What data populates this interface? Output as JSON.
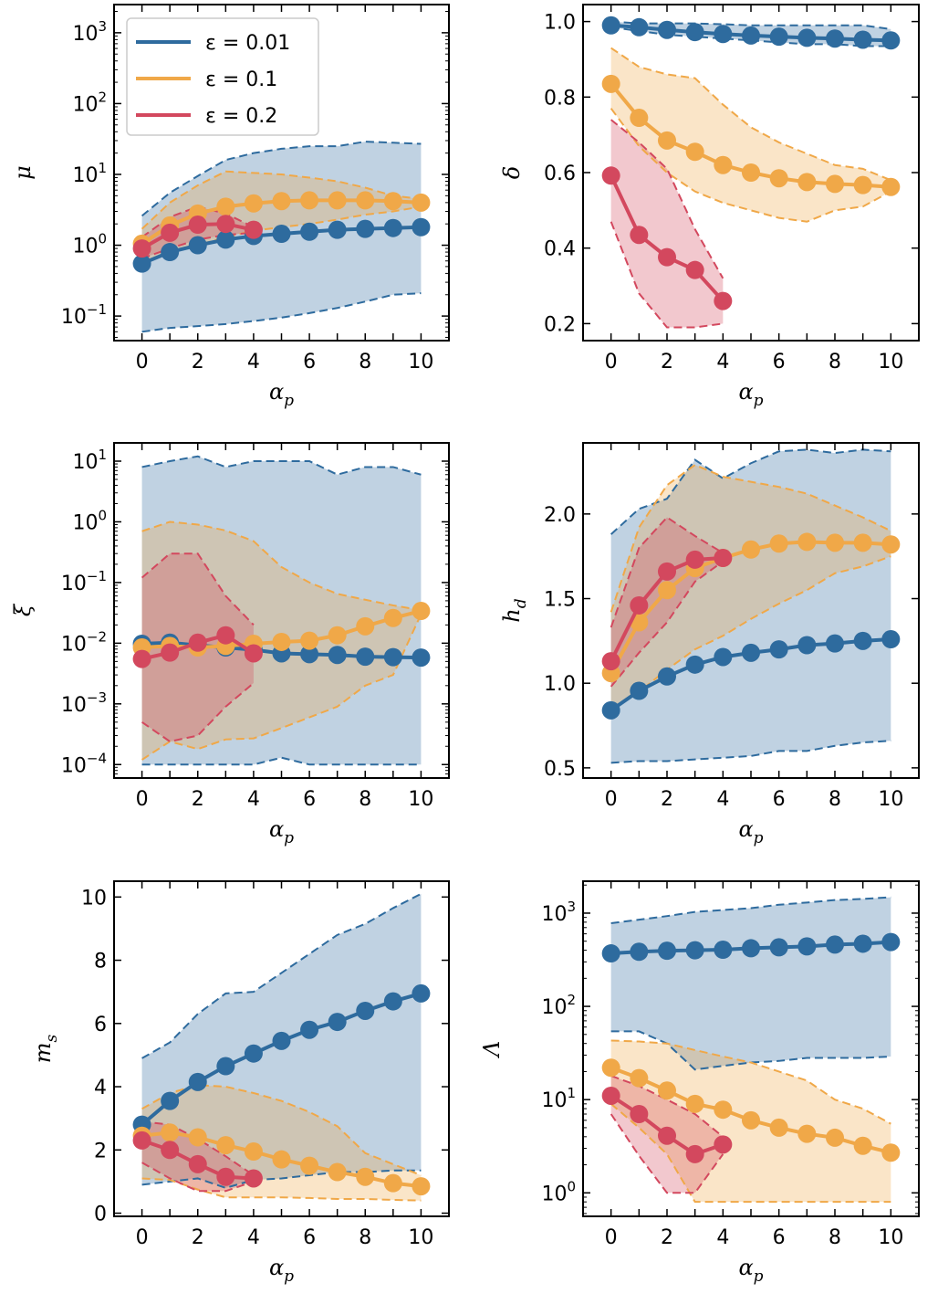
{
  "colors": {
    "eps_0_01": "#2e6b9e",
    "eps_0_1": "#f0a848",
    "eps_0_2": "#d3485e"
  },
  "legend": {
    "placement": "upper-left of first panel",
    "entries": [
      "ε = 0.01",
      "ε = 0.1",
      "ε = 0.2"
    ]
  },
  "chart_data": [
    {
      "id": "mu",
      "type": "line",
      "ylabel": "μ",
      "xlabel": "α_p",
      "yscale": "log",
      "ylim": [
        0.045,
        2500
      ],
      "xlim": [
        -1,
        11
      ],
      "xticks": [
        0,
        2,
        4,
        6,
        8,
        10
      ],
      "yticks": [
        0.1,
        1,
        10,
        100,
        1000
      ],
      "ytick_labels": [
        "10^-1",
        "10^0",
        "10^1",
        "10^2",
        "10^3"
      ],
      "series": [
        {
          "name": "ε = 0.01",
          "x": [
            0,
            1,
            2,
            3,
            4,
            5,
            6,
            7,
            8,
            9,
            10
          ],
          "values": [
            0.55,
            0.8,
            1.0,
            1.2,
            1.35,
            1.45,
            1.55,
            1.65,
            1.7,
            1.75,
            1.8
          ],
          "band_upper": [
            2.6,
            5.5,
            9.5,
            16,
            20,
            23,
            25,
            25,
            29,
            28,
            27
          ],
          "band_lower": [
            0.06,
            0.068,
            0.072,
            0.077,
            0.085,
            0.095,
            0.11,
            0.13,
            0.16,
            0.2,
            0.21
          ]
        },
        {
          "name": "ε = 0.1",
          "x": [
            0,
            1,
            2,
            3,
            4,
            5,
            6,
            7,
            8,
            9,
            10
          ],
          "values": [
            1.05,
            1.9,
            2.8,
            3.5,
            3.9,
            4.2,
            4.3,
            4.3,
            4.3,
            4.2,
            4.0
          ],
          "band_upper": [
            1.7,
            4.0,
            7.0,
            11,
            10.5,
            10,
            9,
            8,
            6.5,
            5,
            4.5
          ],
          "band_lower": [
            0.55,
            0.8,
            1.0,
            1.3,
            1.6,
            1.8,
            2.0,
            2.3,
            2.7,
            3.0,
            3.5
          ]
        },
        {
          "name": "ε = 0.2",
          "x": [
            0,
            1,
            2,
            3,
            4
          ],
          "values": [
            0.9,
            1.5,
            1.95,
            2.0,
            1.65
          ],
          "band_upper": [
            1.3,
            2.5,
            3.5,
            2.8,
            1.8
          ],
          "band_lower": [
            0.65,
            0.9,
            1.2,
            1.4,
            1.5
          ]
        }
      ]
    },
    {
      "id": "delta",
      "type": "line",
      "ylabel": "δ",
      "xlabel": "α_p",
      "yscale": "linear",
      "ylim": [
        0.155,
        1.045
      ],
      "xlim": [
        -1,
        11
      ],
      "xticks": [
        0,
        2,
        4,
        6,
        8,
        10
      ],
      "yticks": [
        0.2,
        0.4,
        0.6,
        0.8,
        1.0
      ],
      "ytick_labels": [
        "0.2",
        "0.4",
        "0.6",
        "0.8",
        "1.0"
      ],
      "series": [
        {
          "name": "ε = 0.01",
          "x": [
            0,
            1,
            2,
            3,
            4,
            5,
            6,
            7,
            8,
            9,
            10
          ],
          "values": [
            0.99,
            0.985,
            0.978,
            0.972,
            0.967,
            0.963,
            0.96,
            0.957,
            0.955,
            0.952,
            0.95
          ],
          "band_upper": [
            1.0,
            0.995,
            0.995,
            0.995,
            0.993,
            0.99,
            0.99,
            0.99,
            0.99,
            0.99,
            0.98
          ],
          "band_lower": [
            0.985,
            0.975,
            0.965,
            0.96,
            0.955,
            0.95,
            0.945,
            0.94,
            0.94,
            0.935,
            0.935
          ]
        },
        {
          "name": "ε = 0.1",
          "x": [
            0,
            1,
            2,
            3,
            4,
            5,
            6,
            7,
            8,
            9,
            10
          ],
          "values": [
            0.835,
            0.745,
            0.685,
            0.655,
            0.62,
            0.6,
            0.585,
            0.575,
            0.57,
            0.567,
            0.562
          ],
          "band_upper": [
            0.93,
            0.88,
            0.86,
            0.85,
            0.78,
            0.72,
            0.68,
            0.65,
            0.62,
            0.61,
            0.58
          ],
          "band_lower": [
            0.77,
            0.67,
            0.6,
            0.55,
            0.52,
            0.5,
            0.48,
            0.47,
            0.5,
            0.51,
            0.55
          ]
        },
        {
          "name": "ε = 0.2",
          "x": [
            0,
            1,
            2,
            3,
            4
          ],
          "values": [
            0.592,
            0.435,
            0.376,
            0.342,
            0.26
          ],
          "band_upper": [
            0.74,
            0.68,
            0.61,
            0.45,
            0.32
          ],
          "band_lower": [
            0.47,
            0.28,
            0.19,
            0.19,
            0.2
          ]
        }
      ]
    },
    {
      "id": "xi",
      "type": "line",
      "ylabel": "ξ",
      "xlabel": "α_p",
      "yscale": "log",
      "ylim": [
        6e-05,
        20
      ],
      "xlim": [
        -1,
        11
      ],
      "xticks": [
        0,
        2,
        4,
        6,
        8,
        10
      ],
      "yticks": [
        0.0001,
        0.001,
        0.01,
        0.1,
        1,
        10
      ],
      "ytick_labels": [
        "10^-4",
        "10^-3",
        "10^-2",
        "10^-1",
        "10^0",
        "10^1"
      ],
      "series": [
        {
          "name": "ε = 0.01",
          "x": [
            0,
            1,
            2,
            3,
            4,
            5,
            6,
            7,
            8,
            9,
            10
          ],
          "values": [
            0.0098,
            0.0102,
            0.0092,
            0.0085,
            0.0078,
            0.0068,
            0.0066,
            0.0064,
            0.006,
            0.0059,
            0.0058
          ],
          "band_upper": [
            8,
            10,
            12,
            8,
            10,
            10,
            10,
            6,
            8,
            8,
            6
          ],
          "band_lower": [
            0.0001,
            0.0001,
            0.0001,
            0.0001,
            0.0001,
            0.00013,
            0.0001,
            0.0001,
            0.0001,
            0.0001,
            0.0001
          ]
        },
        {
          "name": "ε = 0.1",
          "x": [
            0,
            1,
            2,
            3,
            4,
            5,
            6,
            7,
            8,
            9,
            10
          ],
          "values": [
            0.0085,
            0.009,
            0.0085,
            0.009,
            0.0098,
            0.0105,
            0.011,
            0.0135,
            0.019,
            0.026,
            0.034
          ],
          "band_upper": [
            0.7,
            1.0,
            0.9,
            0.72,
            0.48,
            0.18,
            0.1,
            0.065,
            0.052,
            0.042,
            0.035
          ],
          "band_lower": [
            0.00012,
            0.00024,
            0.00018,
            0.00026,
            0.00027,
            0.0004,
            0.0006,
            0.0009,
            0.002,
            0.003,
            0.03
          ]
        },
        {
          "name": "ε = 0.2",
          "x": [
            0,
            1,
            2,
            3,
            4
          ],
          "values": [
            0.0055,
            0.007,
            0.0102,
            0.0135,
            0.0068
          ],
          "band_upper": [
            0.12,
            0.3,
            0.3,
            0.06,
            0.02
          ],
          "band_lower": [
            0.0005,
            0.00024,
            0.0003,
            0.0009,
            0.0022
          ]
        }
      ]
    },
    {
      "id": "h_d",
      "type": "line",
      "ylabel": "h_d",
      "xlabel": "α_p",
      "yscale": "linear",
      "ylim": [
        0.44,
        2.42
      ],
      "xlim": [
        -1,
        11
      ],
      "xticks": [
        0,
        2,
        4,
        6,
        8,
        10
      ],
      "yticks": [
        0.5,
        1.0,
        1.5,
        2.0
      ],
      "ytick_labels": [
        "0.5",
        "1.0",
        "1.5",
        "2.0"
      ],
      "series": [
        {
          "name": "ε = 0.01",
          "x": [
            0,
            1,
            2,
            3,
            4,
            5,
            6,
            7,
            8,
            9,
            10
          ],
          "values": [
            0.84,
            0.955,
            1.04,
            1.11,
            1.155,
            1.18,
            1.2,
            1.225,
            1.235,
            1.25,
            1.26
          ],
          "band_upper": [
            1.88,
            2.03,
            2.09,
            2.32,
            2.21,
            2.3,
            2.37,
            2.38,
            2.36,
            2.38,
            2.37
          ],
          "band_lower": [
            0.53,
            0.54,
            0.54,
            0.55,
            0.56,
            0.57,
            0.6,
            0.6,
            0.63,
            0.65,
            0.66
          ]
        },
        {
          "name": "ε = 0.1",
          "x": [
            0,
            1,
            2,
            3,
            4,
            5,
            6,
            7,
            8,
            9,
            10
          ],
          "values": [
            1.06,
            1.36,
            1.55,
            1.68,
            1.74,
            1.79,
            1.825,
            1.835,
            1.83,
            1.83,
            1.82
          ],
          "band_upper": [
            1.42,
            1.92,
            2.17,
            2.29,
            2.22,
            2.19,
            2.16,
            2.12,
            2.05,
            1.98,
            1.9
          ],
          "band_lower": [
            0.85,
            0.95,
            1.08,
            1.2,
            1.28,
            1.38,
            1.47,
            1.55,
            1.65,
            1.69,
            1.75
          ]
        },
        {
          "name": "ε = 0.2",
          "x": [
            0,
            1,
            2,
            3,
            4
          ],
          "values": [
            1.13,
            1.46,
            1.66,
            1.73,
            1.74
          ],
          "band_upper": [
            1.33,
            1.8,
            1.98,
            1.87,
            1.77
          ],
          "band_lower": [
            0.98,
            1.18,
            1.36,
            1.6,
            1.72
          ]
        }
      ]
    },
    {
      "id": "m_s",
      "type": "line",
      "ylabel": "m_s",
      "xlabel": "α_p",
      "yscale": "linear",
      "ylim": [
        -0.1,
        10.5
      ],
      "xlim": [
        -1,
        11
      ],
      "xticks": [
        0,
        2,
        4,
        6,
        8,
        10
      ],
      "yticks": [
        0,
        2,
        4,
        6,
        8,
        10
      ],
      "ytick_labels": [
        "0",
        "2",
        "4",
        "6",
        "8",
        "10"
      ],
      "series": [
        {
          "name": "ε = 0.01",
          "x": [
            0,
            1,
            2,
            3,
            4,
            5,
            6,
            7,
            8,
            9,
            10
          ],
          "values": [
            2.8,
            3.55,
            4.15,
            4.65,
            5.05,
            5.45,
            5.8,
            6.05,
            6.4,
            6.7,
            6.95
          ],
          "band_upper": [
            4.9,
            5.4,
            6.3,
            6.95,
            7.0,
            7.6,
            8.2,
            8.8,
            9.15,
            9.65,
            10.1
          ],
          "band_lower": [
            0.9,
            1.0,
            1.1,
            0.8,
            1.05,
            1.1,
            1.2,
            1.3,
            1.3,
            1.35,
            1.35
          ]
        },
        {
          "name": "ε = 0.1",
          "x": [
            0,
            1,
            2,
            3,
            4,
            5,
            6,
            7,
            8,
            9,
            10
          ],
          "values": [
            2.45,
            2.55,
            2.4,
            2.15,
            1.95,
            1.7,
            1.5,
            1.3,
            1.15,
            0.95,
            0.85
          ],
          "band_upper": [
            3.3,
            3.8,
            4.05,
            4.0,
            3.8,
            3.55,
            3.2,
            2.75,
            1.9,
            1.55,
            1.2
          ],
          "band_lower": [
            1.1,
            1.05,
            0.75,
            0.5,
            0.5,
            0.5,
            0.48,
            0.45,
            0.45,
            0.42,
            0.4
          ]
        },
        {
          "name": "ε = 0.2",
          "x": [
            0,
            1,
            2,
            3,
            4
          ],
          "values": [
            2.3,
            2.0,
            1.55,
            1.15,
            1.1
          ],
          "band_upper": [
            2.9,
            2.8,
            2.35,
            1.8,
            1.2
          ],
          "band_lower": [
            1.6,
            1.1,
            0.7,
            0.7,
            1.0
          ]
        }
      ]
    },
    {
      "id": "Lambda",
      "type": "line",
      "ylabel": "Λ",
      "xlabel": "α_p",
      "yscale": "log",
      "ylim": [
        0.56,
        2200
      ],
      "xlim": [
        -1,
        11
      ],
      "xticks": [
        0,
        2,
        4,
        6,
        8,
        10
      ],
      "yticks": [
        1,
        10,
        100,
        1000
      ],
      "ytick_labels": [
        "10^0",
        "10^1",
        "10^2",
        "10^3"
      ],
      "series": [
        {
          "name": "ε = 0.01",
          "x": [
            0,
            1,
            2,
            3,
            4,
            5,
            6,
            7,
            8,
            9,
            10
          ],
          "values": [
            370,
            385,
            395,
            400,
            405,
            420,
            430,
            440,
            460,
            470,
            490
          ],
          "band_upper": [
            780,
            850,
            930,
            1030,
            1080,
            1130,
            1230,
            1300,
            1380,
            1420,
            1480
          ],
          "band_lower": [
            54,
            54,
            40,
            21,
            23,
            25,
            26,
            28,
            28,
            28,
            29
          ]
        },
        {
          "name": "ε = 0.1",
          "x": [
            0,
            1,
            2,
            3,
            4,
            5,
            6,
            7,
            8,
            9,
            10
          ],
          "values": [
            22,
            17,
            12.5,
            9,
            7.8,
            6,
            5,
            4.3,
            3.9,
            3.2,
            2.7
          ],
          "band_upper": [
            43,
            42,
            40,
            34,
            29,
            25,
            20,
            16,
            10,
            8,
            5.5
          ],
          "band_lower": [
            9,
            5,
            2.6,
            0.8,
            0.8,
            0.8,
            0.8,
            0.8,
            0.8,
            0.8,
            0.8
          ]
        },
        {
          "name": "ε = 0.2",
          "x": [
            0,
            1,
            2,
            3,
            4
          ],
          "values": [
            11,
            7,
            4.1,
            2.6,
            3.3
          ],
          "band_upper": [
            18,
            14,
            10,
            7,
            4
          ],
          "band_lower": [
            7,
            2.5,
            1.0,
            1.0,
            2.6
          ]
        }
      ]
    }
  ]
}
